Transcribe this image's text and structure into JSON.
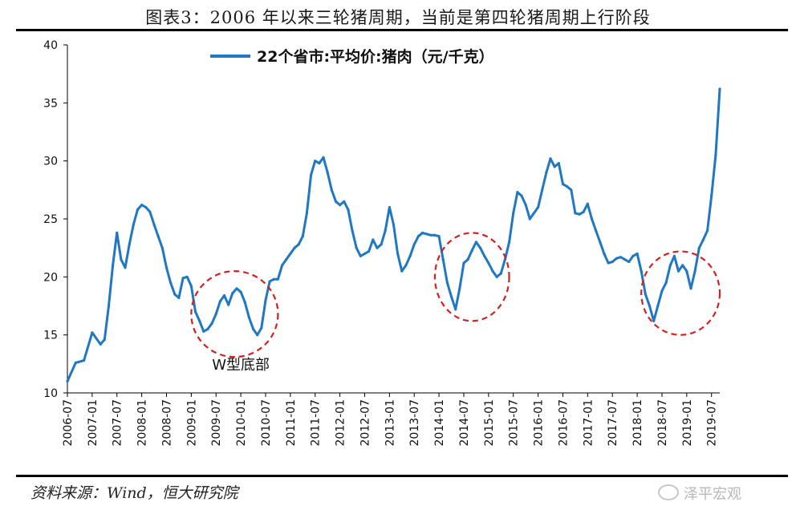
{
  "figure_title": "图表3：2006 年以来三轮猪周期，当前是第四轮猪周期上行阶段",
  "source_note": "资料来源：Wind，恒大研究院",
  "watermark": "泽平宏观",
  "colors": {
    "series": "#1f78c1",
    "circle": "#d42020",
    "axis": "#000000"
  },
  "chart_data": {
    "type": "line",
    "title": "",
    "xlabel": "",
    "ylabel": "",
    "ylim": [
      10,
      40
    ],
    "yticks": [
      10,
      15,
      20,
      25,
      30,
      35,
      40
    ],
    "xlim": [
      "2006-07",
      "2019-09"
    ],
    "xticks": [
      "2006-07",
      "2007-01",
      "2007-07",
      "2008-01",
      "2008-07",
      "2009-01",
      "2009-07",
      "2010-01",
      "2010-07",
      "2011-01",
      "2011-07",
      "2012-01",
      "2012-07",
      "2013-01",
      "2013-07",
      "2014-01",
      "2014-07",
      "2015-01",
      "2015-07",
      "2016-01",
      "2016-07",
      "2017-01",
      "2017-07",
      "2018-01",
      "2018-07",
      "2019-01",
      "2019-07"
    ],
    "legend": {
      "position": "top",
      "entries": [
        "22个省市:平均价:猪肉（元/千克）"
      ]
    },
    "grid": false,
    "series": [
      {
        "name": "22个省市:平均价:猪肉（元/千克）",
        "points": [
          [
            "2006-07",
            11.0
          ],
          [
            "2006-09",
            12.6
          ],
          [
            "2006-11",
            12.8
          ],
          [
            "2007-01",
            15.2
          ],
          [
            "2007-03",
            14.2
          ],
          [
            "2007-04",
            14.6
          ],
          [
            "2007-05",
            17.5
          ],
          [
            "2007-06",
            21.0
          ],
          [
            "2007-07",
            23.8
          ],
          [
            "2007-08",
            21.5
          ],
          [
            "2007-09",
            20.8
          ],
          [
            "2007-10",
            22.8
          ],
          [
            "2007-11",
            24.5
          ],
          [
            "2007-12",
            25.8
          ],
          [
            "2008-01",
            26.2
          ],
          [
            "2008-02",
            26.0
          ],
          [
            "2008-03",
            25.6
          ],
          [
            "2008-04",
            24.5
          ],
          [
            "2008-05",
            23.5
          ],
          [
            "2008-06",
            22.5
          ],
          [
            "2008-07",
            20.8
          ],
          [
            "2008-08",
            19.5
          ],
          [
            "2008-09",
            18.5
          ],
          [
            "2008-10",
            18.2
          ],
          [
            "2008-11",
            19.9
          ],
          [
            "2008-12",
            20.0
          ],
          [
            "2009-01",
            19.2
          ],
          [
            "2009-02",
            17.0
          ],
          [
            "2009-03",
            16.2
          ],
          [
            "2009-04",
            15.3
          ],
          [
            "2009-05",
            15.5
          ],
          [
            "2009-06",
            16.0
          ],
          [
            "2009-07",
            16.8
          ],
          [
            "2009-08",
            17.9
          ],
          [
            "2009-09",
            18.4
          ],
          [
            "2009-10",
            17.6
          ],
          [
            "2009-11",
            18.6
          ],
          [
            "2009-12",
            19.0
          ],
          [
            "2010-01",
            18.7
          ],
          [
            "2010-02",
            17.8
          ],
          [
            "2010-03",
            16.5
          ],
          [
            "2010-04",
            15.5
          ],
          [
            "2010-05",
            15.0
          ],
          [
            "2010-06",
            15.6
          ],
          [
            "2010-07",
            18.0
          ],
          [
            "2010-08",
            19.6
          ],
          [
            "2010-09",
            19.8
          ],
          [
            "2010-10",
            19.8
          ],
          [
            "2010-11",
            21.0
          ],
          [
            "2010-12",
            21.5
          ],
          [
            "2011-01",
            22.0
          ],
          [
            "2011-02",
            22.5
          ],
          [
            "2011-03",
            22.8
          ],
          [
            "2011-04",
            23.5
          ],
          [
            "2011-05",
            25.5
          ],
          [
            "2011-06",
            28.8
          ],
          [
            "2011-07",
            30.0
          ],
          [
            "2011-08",
            29.8
          ],
          [
            "2011-09",
            30.3
          ],
          [
            "2011-10",
            29.0
          ],
          [
            "2011-11",
            27.5
          ],
          [
            "2011-12",
            26.5
          ],
          [
            "2012-01",
            26.2
          ],
          [
            "2012-02",
            26.5
          ],
          [
            "2012-03",
            25.8
          ],
          [
            "2012-04",
            24.0
          ],
          [
            "2012-05",
            22.5
          ],
          [
            "2012-06",
            21.8
          ],
          [
            "2012-07",
            22.0
          ],
          [
            "2012-08",
            22.2
          ],
          [
            "2012-09",
            23.2
          ],
          [
            "2012-10",
            22.5
          ],
          [
            "2012-11",
            22.8
          ],
          [
            "2012-12",
            24.0
          ],
          [
            "2013-01",
            26.0
          ],
          [
            "2013-02",
            24.5
          ],
          [
            "2013-03",
            22.0
          ],
          [
            "2013-04",
            20.5
          ],
          [
            "2013-05",
            21.0
          ],
          [
            "2013-06",
            21.8
          ],
          [
            "2013-07",
            22.8
          ],
          [
            "2013-08",
            23.5
          ],
          [
            "2013-09",
            23.8
          ],
          [
            "2013-10",
            23.7
          ],
          [
            "2013-11",
            23.6
          ],
          [
            "2013-12",
            23.6
          ],
          [
            "2014-01",
            23.5
          ],
          [
            "2014-02",
            21.5
          ],
          [
            "2014-03",
            19.5
          ],
          [
            "2014-04",
            18.3
          ],
          [
            "2014-05",
            17.2
          ],
          [
            "2014-06",
            19.0
          ],
          [
            "2014-07",
            21.2
          ],
          [
            "2014-08",
            21.5
          ],
          [
            "2014-09",
            22.3
          ],
          [
            "2014-10",
            23.0
          ],
          [
            "2014-11",
            22.5
          ],
          [
            "2014-12",
            21.8
          ],
          [
            "2015-01",
            21.2
          ],
          [
            "2015-02",
            20.5
          ],
          [
            "2015-03",
            20.0
          ],
          [
            "2015-04",
            20.3
          ],
          [
            "2015-05",
            21.5
          ],
          [
            "2015-06",
            23.0
          ],
          [
            "2015-07",
            25.5
          ],
          [
            "2015-08",
            27.3
          ],
          [
            "2015-09",
            27.0
          ],
          [
            "2015-10",
            26.2
          ],
          [
            "2015-11",
            25.0
          ],
          [
            "2015-12",
            25.5
          ],
          [
            "2016-01",
            26.0
          ],
          [
            "2016-02",
            27.5
          ],
          [
            "2016-03",
            29.0
          ],
          [
            "2016-04",
            30.2
          ],
          [
            "2016-05",
            29.5
          ],
          [
            "2016-06",
            29.8
          ],
          [
            "2016-07",
            28.0
          ],
          [
            "2016-08",
            27.8
          ],
          [
            "2016-09",
            27.5
          ],
          [
            "2016-10",
            25.5
          ],
          [
            "2016-11",
            25.4
          ],
          [
            "2016-12",
            25.6
          ],
          [
            "2017-01",
            26.3
          ],
          [
            "2017-02",
            25.0
          ],
          [
            "2017-03",
            24.0
          ],
          [
            "2017-04",
            23.0
          ],
          [
            "2017-05",
            22.0
          ],
          [
            "2017-06",
            21.2
          ],
          [
            "2017-07",
            21.3
          ],
          [
            "2017-08",
            21.6
          ],
          [
            "2017-09",
            21.7
          ],
          [
            "2017-10",
            21.5
          ],
          [
            "2017-11",
            21.3
          ],
          [
            "2017-12",
            21.8
          ],
          [
            "2018-01",
            22.0
          ],
          [
            "2018-02",
            20.5
          ],
          [
            "2018-03",
            18.5
          ],
          [
            "2018-04",
            17.5
          ],
          [
            "2018-05",
            16.2
          ],
          [
            "2018-06",
            17.5
          ],
          [
            "2018-07",
            18.8
          ],
          [
            "2018-08",
            19.5
          ],
          [
            "2018-09",
            21.0
          ],
          [
            "2018-10",
            21.8
          ],
          [
            "2018-11",
            20.5
          ],
          [
            "2018-12",
            21.0
          ],
          [
            "2019-01",
            20.5
          ],
          [
            "2019-02",
            19.0
          ],
          [
            "2019-03",
            20.5
          ],
          [
            "2019-04",
            22.5
          ],
          [
            "2019-05",
            23.2
          ],
          [
            "2019-06",
            24.0
          ],
          [
            "2019-07",
            27.0
          ],
          [
            "2019-08",
            30.5
          ],
          [
            "2019-09",
            36.2
          ]
        ]
      }
    ],
    "annotations": [
      {
        "type": "ellipse",
        "x_from": "2009-01",
        "x_to": "2010-10",
        "y_from": 13.1,
        "y_to": 20.5
      },
      {
        "type": "ellipse",
        "x_from": "2013-12",
        "x_to": "2015-06",
        "y_from": 16.2,
        "y_to": 23.8
      },
      {
        "type": "ellipse",
        "x_from": "2018-02",
        "x_to": "2019-09",
        "y_from": 15.0,
        "y_to": 22.2
      },
      {
        "type": "text",
        "text": "W型底部",
        "x": "2010-01",
        "y": 12.0
      }
    ]
  }
}
